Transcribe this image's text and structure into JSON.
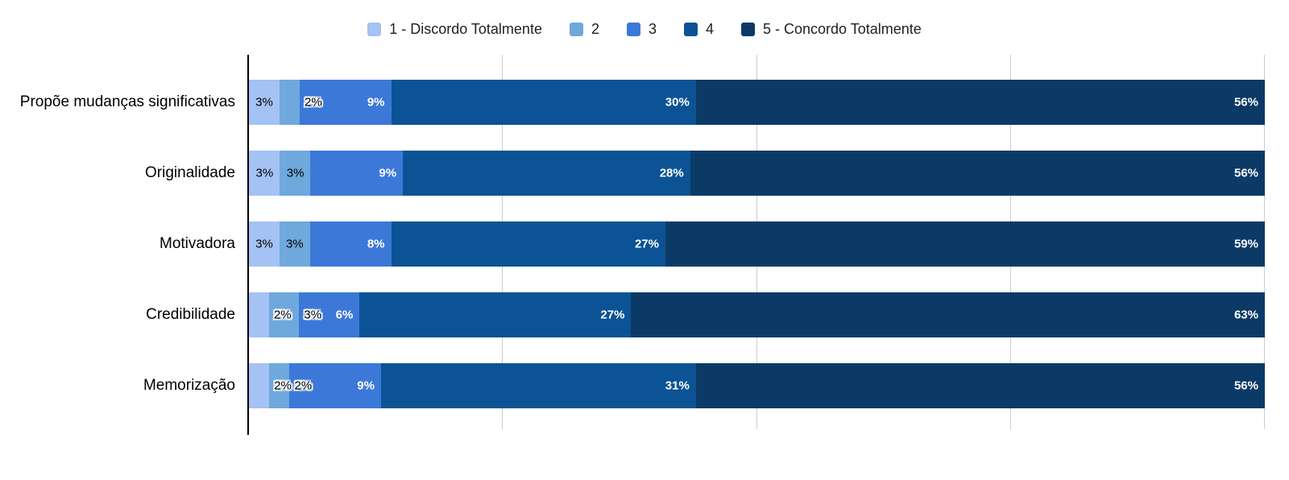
{
  "chart_data": {
    "type": "bar",
    "orientation": "horizontal",
    "stacked": true,
    "title": "",
    "xlabel": "",
    "ylabel": "",
    "value_suffix": "%",
    "xlim": [
      0,
      100
    ],
    "gridlines_pct": [
      25,
      50,
      75,
      100
    ],
    "grid": true,
    "legend_position": "top",
    "categories": [
      "Propõe mudanças significativas",
      "Originalidade",
      "Motivadora",
      "Credibilidade",
      "Memorização"
    ],
    "series": [
      {
        "name": "1 - Discordo Totalmente",
        "color": "#a4c2f4",
        "values": [
          3,
          3,
          3,
          2,
          2
        ]
      },
      {
        "name": "2",
        "color": "#6fa8dc",
        "values": [
          2,
          3,
          3,
          3,
          2
        ]
      },
      {
        "name": "3",
        "color": "#3c78d8",
        "values": [
          9,
          9,
          8,
          6,
          9
        ]
      },
      {
        "name": "4",
        "color": "#0b5394",
        "values": [
          30,
          28,
          27,
          27,
          31
        ]
      },
      {
        "name": "5 - Concordo Totalmente",
        "color": "#0c3a66",
        "values": [
          56,
          56,
          59,
          63,
          56
        ]
      }
    ],
    "label_overflow_flags": [
      [
        0,
        1,
        0,
        0,
        0
      ],
      [
        0,
        0,
        0,
        0,
        0
      ],
      [
        0,
        0,
        0,
        0,
        0
      ],
      [
        1,
        1,
        0,
        0,
        0
      ],
      [
        1,
        1,
        0,
        0,
        0
      ]
    ]
  },
  "colors": {
    "background": "#ffffff",
    "axis": "#000000",
    "gridline": "#cccccc",
    "label_dark": "#000000",
    "label_light": "#ffffff"
  }
}
